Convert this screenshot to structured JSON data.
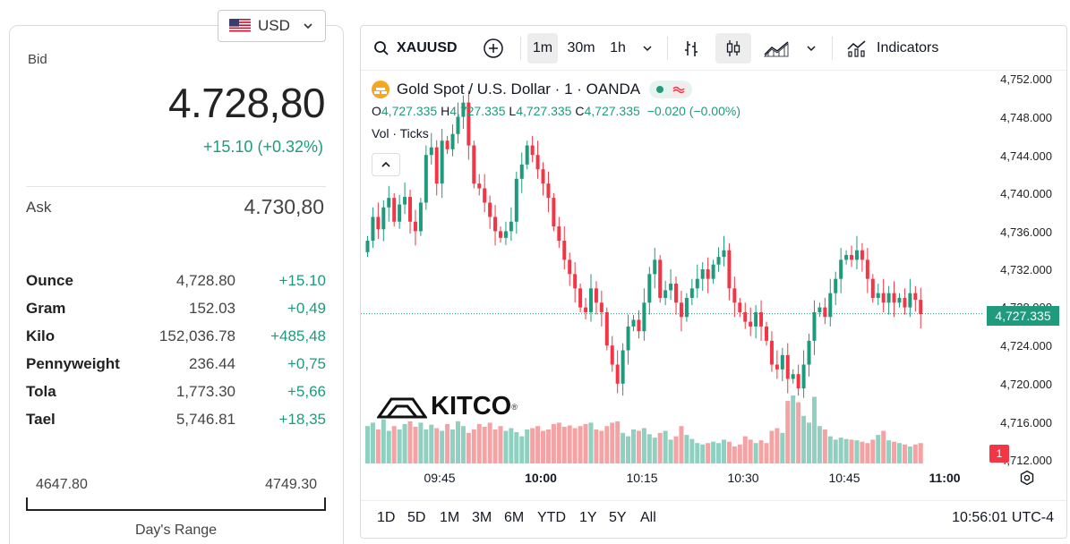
{
  "currency": {
    "label": "USD",
    "flag": "us-flag-icon"
  },
  "bid": {
    "label": "Bid",
    "value": "4.728,80",
    "change": "+15.10 (+0.32%)"
  },
  "ask": {
    "label": "Ask",
    "value": "4.730,80"
  },
  "units": [
    {
      "name": "Ounce",
      "value": "4,728.80",
      "change": "+15.10"
    },
    {
      "name": "Gram",
      "value": "152.03",
      "change": "+0,49"
    },
    {
      "name": "Kilo",
      "value": "152,036.78",
      "change": "+485,48"
    },
    {
      "name": "Pennyweight",
      "value": "236.44",
      "change": "+0,75"
    },
    {
      "name": "Tola",
      "value": "1,773.30",
      "change": "+5,66"
    },
    {
      "name": "Tael",
      "value": "5,746.81",
      "change": "+18,35"
    }
  ],
  "days_range": {
    "low": "4647.80",
    "high": "4749.30",
    "label": "Day's Range"
  },
  "colors": {
    "up": "#1f9a7c",
    "down": "#f23645",
    "up_vol": "#8fd0c0",
    "down_vol": "#f4a3a5"
  },
  "chart": {
    "symbol": "XAUUSD",
    "intervals": [
      "1m",
      "30m",
      "1h"
    ],
    "active_interval": "1m",
    "indicators_label": "Indicators",
    "title": "Gold Spot / U.S. Dollar · 1 · OANDA",
    "ohlc": {
      "o": "4,727.335",
      "h": "4,727.335",
      "l": "4,727.335",
      "c": "4,727.335",
      "chg": "−0.020 (−0.00%)"
    },
    "ohlc_labels": {
      "o": "O",
      "h": "H",
      "l": "L",
      "c": "C"
    },
    "vol_label": "Vol · Ticks",
    "price_ticks": [
      "4,752.000",
      "4,748.000",
      "4,744.000",
      "4,740.000",
      "4,736.000",
      "4,732.000",
      "4,728.000",
      "4,724.000",
      "4,720.000",
      "4,716.000",
      "4,712.000"
    ],
    "current_price": "4,727.335",
    "badge": "1",
    "time_labels": [
      "09:45",
      "10:00",
      "10:15",
      "10:30",
      "10:45",
      "11:00"
    ],
    "ranges": [
      "1D",
      "5D",
      "1M",
      "3M",
      "6M",
      "YTD",
      "1Y",
      "5Y",
      "All"
    ],
    "clock": "10:56:01 UTC-4",
    "logo_text": "KITCO"
  },
  "chart_data": {
    "type": "candlestick",
    "interval": "1m",
    "ylim": [
      4712,
      4752
    ],
    "current_price": 4727.335,
    "start_time": "09:37",
    "closes": [
      4735.0,
      4737.5,
      4736.2,
      4738.5,
      4739.5,
      4737.0,
      4738.8,
      4739.6,
      4737.0,
      4736.0,
      4739.0,
      4744.0,
      4744.8,
      4741.0,
      4745.5,
      4744.6,
      4746.2,
      4748.0,
      4749.5,
      4745.0,
      4741.0,
      4740.5,
      4739.0,
      4737.5,
      4736.0,
      4735.3,
      4736.0,
      4737.0,
      4741.5,
      4743.0,
      4745.0,
      4744.0,
      4742.5,
      4741.0,
      4739.5,
      4736.5,
      4735.0,
      4733.0,
      4731.5,
      4730.0,
      4728.0,
      4727.5,
      4730.0,
      4728.5,
      4727.5,
      4724.0,
      4722.0,
      4720.0,
      4723.5,
      4726.0,
      4726.7,
      4725.5,
      4728.5,
      4731.5,
      4733.0,
      4729.0,
      4729.8,
      4730.5,
      4728.5,
      4727.0,
      4729.0,
      4730.0,
      4731.0,
      4732.0,
      4731.0,
      4732.5,
      4733.3,
      4734.0,
      4730.0,
      4728.5,
      4727.5,
      4726.5,
      4726.0,
      4727.5,
      4726.0,
      4724.5,
      4722.0,
      4721.5,
      4723.0,
      4720.5,
      4721.0,
      4719.5,
      4722.0,
      4724.5,
      4727.5,
      4728.0,
      4727.0,
      4729.5,
      4731.0,
      4733.0,
      4733.5,
      4733.0,
      4734.0,
      4733.0,
      4731.0,
      4729.0,
      4729.5,
      4728.5,
      4729.5,
      4728.5,
      4729.0,
      4728.0,
      4729.5,
      4728.8,
      4727.3
    ],
    "volume_ticks_relative": [
      0.55,
      0.6,
      0.5,
      0.65,
      0.48,
      0.55,
      0.5,
      0.58,
      0.62,
      0.54,
      0.6,
      0.5,
      0.57,
      0.52,
      0.48,
      0.58,
      0.5,
      0.62,
      0.55,
      0.45,
      0.5,
      0.58,
      0.54,
      0.6,
      0.5,
      0.55,
      0.48,
      0.52,
      0.46,
      0.4,
      0.5,
      0.52,
      0.55,
      0.48,
      0.5,
      0.58,
      0.6,
      0.54,
      0.56,
      0.52,
      0.55,
      0.58,
      0.6,
      0.5,
      0.48,
      0.55,
      0.6,
      0.62,
      0.45,
      0.4,
      0.5,
      0.48,
      0.52,
      0.43,
      0.38,
      0.45,
      0.48,
      0.35,
      0.4,
      0.55,
      0.42,
      0.36,
      0.3,
      0.28,
      0.3,
      0.32,
      0.3,
      0.35,
      0.32,
      0.25,
      0.28,
      0.4,
      0.35,
      0.3,
      0.34,
      0.3,
      0.48,
      0.52,
      0.45,
      0.92,
      1.0,
      0.9,
      0.7,
      0.6,
      0.98,
      0.55,
      0.5,
      0.4,
      0.35,
      0.38,
      0.36,
      0.35,
      0.34,
      0.32,
      0.3,
      0.35,
      0.42,
      0.48,
      0.34,
      0.32,
      0.3,
      0.28,
      0.25,
      0.28,
      0.3
    ]
  }
}
